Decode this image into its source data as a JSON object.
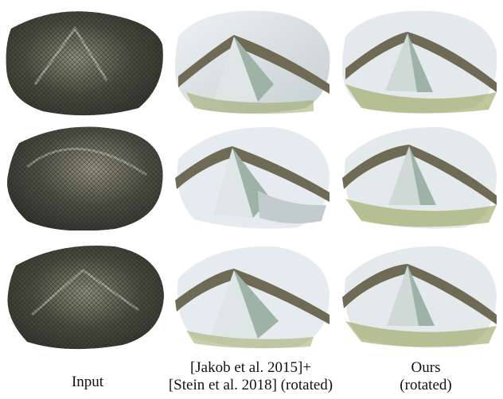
{
  "captions": {
    "input": "Input",
    "baseline_line1": "[Jakob et al. 2015]+",
    "baseline_line2": "[Stein et al. 2018] (rotated)",
    "ours_line1": "Ours",
    "ours_line2": "(rotated)"
  },
  "colors": {
    "mesh_dark": "#3e4032",
    "mesh_light": "#c9cfc0",
    "wire": "#1d2233",
    "sky": "#e6ebef",
    "metal_light": "#dfe7e6",
    "metal_mid": "#9fb2a8",
    "olive": "#98a25a",
    "ridge": "#6e6a55"
  },
  "rows": [
    {
      "name": "row-1"
    },
    {
      "name": "row-2"
    },
    {
      "name": "row-3"
    }
  ]
}
